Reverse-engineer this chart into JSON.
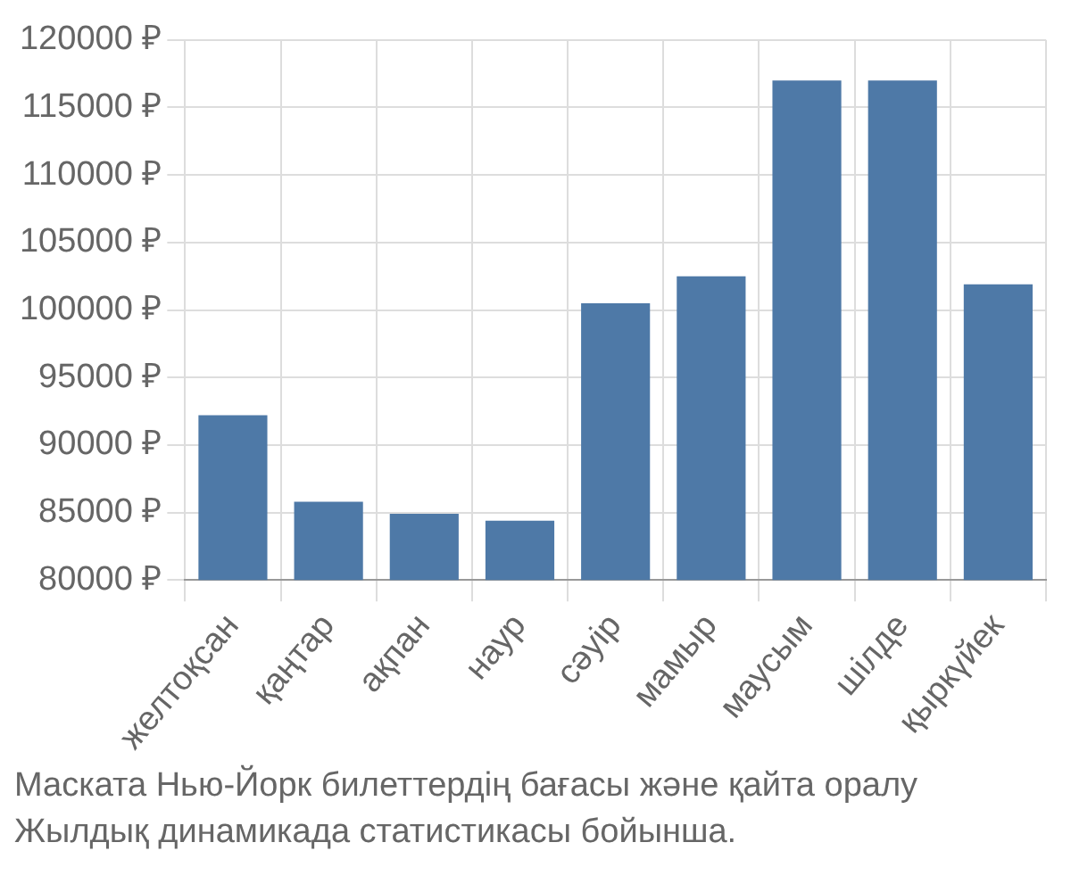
{
  "chart_data": {
    "type": "bar",
    "categories": [
      "желтоқсан",
      "қаңтар",
      "ақпан",
      "наур",
      "сәуір",
      "мамыр",
      "маусым",
      "шілде",
      "қыркүйек"
    ],
    "values": [
      92200,
      85800,
      84900,
      84400,
      100500,
      102500,
      117000,
      117000,
      101900
    ],
    "color": "#4e79a7",
    "ylim": [
      80000,
      120000
    ],
    "yticks": [
      {
        "value": 80000,
        "label": "80000 ₽"
      },
      {
        "value": 85000,
        "label": "85000 ₽"
      },
      {
        "value": 90000,
        "label": "90000 ₽"
      },
      {
        "value": 95000,
        "label": "95000 ₽"
      },
      {
        "value": 100000,
        "label": "100000 ₽"
      },
      {
        "value": 105000,
        "label": "105000 ₽"
      },
      {
        "value": 110000,
        "label": "110000 ₽"
      },
      {
        "value": 115000,
        "label": "115000 ₽"
      },
      {
        "value": 120000,
        "label": "120000 ₽"
      }
    ],
    "grid": true,
    "annotations": [
      "Маската Нью-Йорк билеттердің бағасы және қайта оралу",
      "Жылдық динамикада статистикасы бойынша."
    ]
  }
}
